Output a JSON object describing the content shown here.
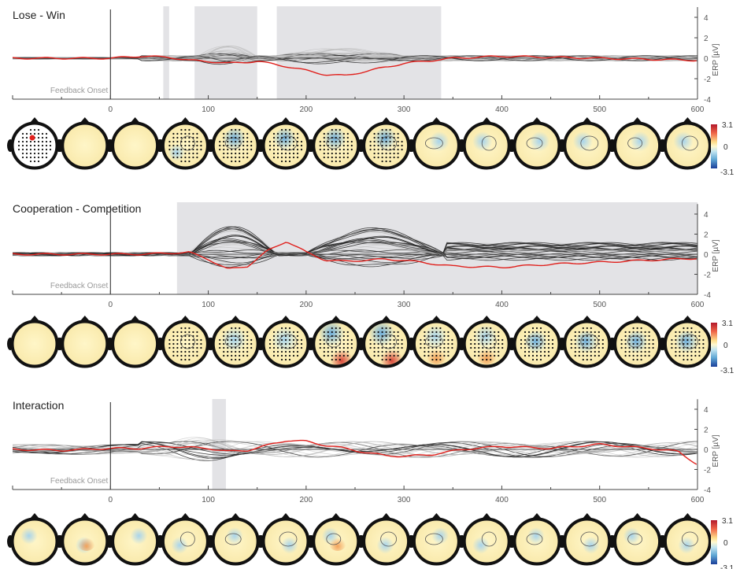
{
  "chart_data": [
    {
      "type": "line",
      "title": "Lose - Win",
      "xlim": [
        -100,
        600
      ],
      "ylim": [
        -4,
        5
      ],
      "x_ticks": [
        0,
        100,
        200,
        300,
        400,
        500,
        600
      ],
      "y_ticks": [
        4,
        2,
        0,
        -2,
        -4
      ],
      "ylabel": "ERP [µV]",
      "annotation": "Feedback Onset",
      "significant_windows": [
        [
          54,
          60
        ],
        [
          86,
          150
        ],
        [
          170,
          338
        ]
      ],
      "series": [
        {
          "x": [
            -100,
            -50,
            0,
            30,
            60,
            80,
            100,
            120,
            150,
            180,
            200,
            220,
            240,
            260,
            300,
            350,
            400,
            450,
            500,
            550,
            600
          ],
          "values": [
            0,
            0,
            0,
            0.2,
            0.1,
            -0.2,
            -0.3,
            -0.5,
            -0.3,
            -0.8,
            -1.2,
            -1.6,
            -1.7,
            -1.3,
            -0.5,
            0,
            0.2,
            0.1,
            0,
            -0.1,
            -0.2
          ]
        }
      ],
      "colorbar": {
        "max": "3.1",
        "mid": "0",
        "min": "-3.1"
      }
    },
    {
      "type": "line",
      "title": "Cooperation - Competition",
      "xlim": [
        -100,
        600
      ],
      "ylim": [
        -4,
        5
      ],
      "x_ticks": [
        0,
        100,
        200,
        300,
        400,
        500,
        600
      ],
      "y_ticks": [
        4,
        2,
        0,
        -2,
        -4
      ],
      "ylabel": "ERP [µV]",
      "annotation": "Feedback Onset",
      "significant_windows": [
        [
          68,
          600
        ]
      ],
      "series": [
        {
          "x": [
            -100,
            -50,
            0,
            30,
            60,
            80,
            100,
            120,
            140,
            160,
            180,
            200,
            220,
            240,
            260,
            280,
            300,
            350,
            400,
            450,
            500,
            550,
            600
          ],
          "values": [
            0,
            0,
            0,
            0,
            0.1,
            0.2,
            -0.5,
            -1.5,
            -1.2,
            0.3,
            1.3,
            0.2,
            -0.6,
            -0.7,
            -0.6,
            -0.5,
            -0.6,
            -1.2,
            -1.3,
            -1.0,
            -0.8,
            -0.6,
            -0.4
          ]
        }
      ],
      "colorbar": {
        "max": "3.1",
        "mid": "0",
        "min": "-3.1"
      }
    },
    {
      "type": "line",
      "title": "Interaction",
      "xlim": [
        -100,
        600
      ],
      "ylim": [
        -4,
        5
      ],
      "x_ticks": [
        0,
        100,
        200,
        300,
        400,
        500,
        600
      ],
      "y_ticks": [
        4,
        2,
        0,
        -2,
        -4
      ],
      "ylabel": "ERP [µV]",
      "annotation": "Feedback Onset",
      "significant_windows": [
        [
          104,
          118
        ]
      ],
      "series": [
        {
          "x": [
            -100,
            -50,
            0,
            30,
            60,
            80,
            100,
            120,
            140,
            160,
            180,
            200,
            220,
            240,
            260,
            280,
            300,
            330,
            360,
            400,
            450,
            500,
            550,
            580,
            600
          ],
          "values": [
            0,
            -0.1,
            0.1,
            0.1,
            0.3,
            0.2,
            0.1,
            -0.2,
            -0.1,
            0.4,
            0.9,
            0.8,
            0.4,
            0.1,
            -0.3,
            -0.6,
            -0.7,
            -0.5,
            0,
            0.3,
            0.1,
            0.5,
            0.1,
            -0.2,
            -1.5
          ]
        }
      ],
      "colorbar": {
        "max": "3.1",
        "mid": "0",
        "min": "-3.1"
      }
    }
  ]
}
